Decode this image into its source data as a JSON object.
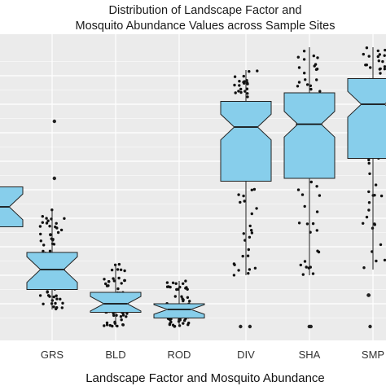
{
  "chart_data": {
    "type": "box",
    "title_lines": [
      "Distribution of Landscape Factor and",
      "Mosquito Abundance Values across Sample Sites"
    ],
    "xlabel": "Landscape Factor and Mosquito Abundance",
    "ylabel": "",
    "ylim": [
      0,
      1
    ],
    "y_grid_values": [
      0.05,
      0.1,
      0.15,
      0.2,
      0.25,
      0.3,
      0.35,
      0.4,
      0.45,
      0.5,
      0.55,
      0.6,
      0.65,
      0.7,
      0.75,
      0.8,
      0.85,
      0.9,
      0.95
    ],
    "grid": true,
    "box_color": "#87CEEB",
    "background_color": "#EBEBEB",
    "categories": [
      "",
      "GRS",
      "BLD",
      "ROD",
      "DIV",
      "SHA",
      "SMP"
    ],
    "boxes": [
      {
        "category": "",
        "whisker_low": null,
        "q1": 0.37,
        "median": 0.44,
        "q3": 0.51,
        "whisker_high": null,
        "outliers": []
      },
      {
        "category": "GRS",
        "whisker_low": 0.08,
        "q1": 0.15,
        "median": 0.22,
        "q3": 0.28,
        "whisker_high": 0.43,
        "outliers": [
          0.74,
          0.54
        ]
      },
      {
        "category": "BLD",
        "whisker_low": 0.02,
        "q1": 0.07,
        "median": 0.1,
        "q3": 0.14,
        "whisker_high": 0.24,
        "outliers": []
      },
      {
        "category": "ROD",
        "whisker_low": 0.02,
        "q1": 0.05,
        "median": 0.08,
        "q3": 0.1,
        "whisker_high": 0.18,
        "outliers": []
      },
      {
        "category": "DIV",
        "whisker_low": 0.2,
        "q1": 0.53,
        "median": 0.72,
        "q3": 0.81,
        "whisker_high": 0.92,
        "outliers": [
          0.02,
          0.02
        ]
      },
      {
        "category": "SHA",
        "whisker_low": 0.2,
        "q1": 0.54,
        "median": 0.73,
        "q3": 0.84,
        "whisker_high": 1.0,
        "outliers": [
          0.02,
          0.02
        ]
      },
      {
        "category": "SMP",
        "whisker_low": 0.22,
        "q1": 0.61,
        "median": 0.8,
        "q3": 0.89,
        "whisker_high": 1.0,
        "outliers": [
          0.13,
          0.13,
          0.02
        ]
      }
    ]
  }
}
